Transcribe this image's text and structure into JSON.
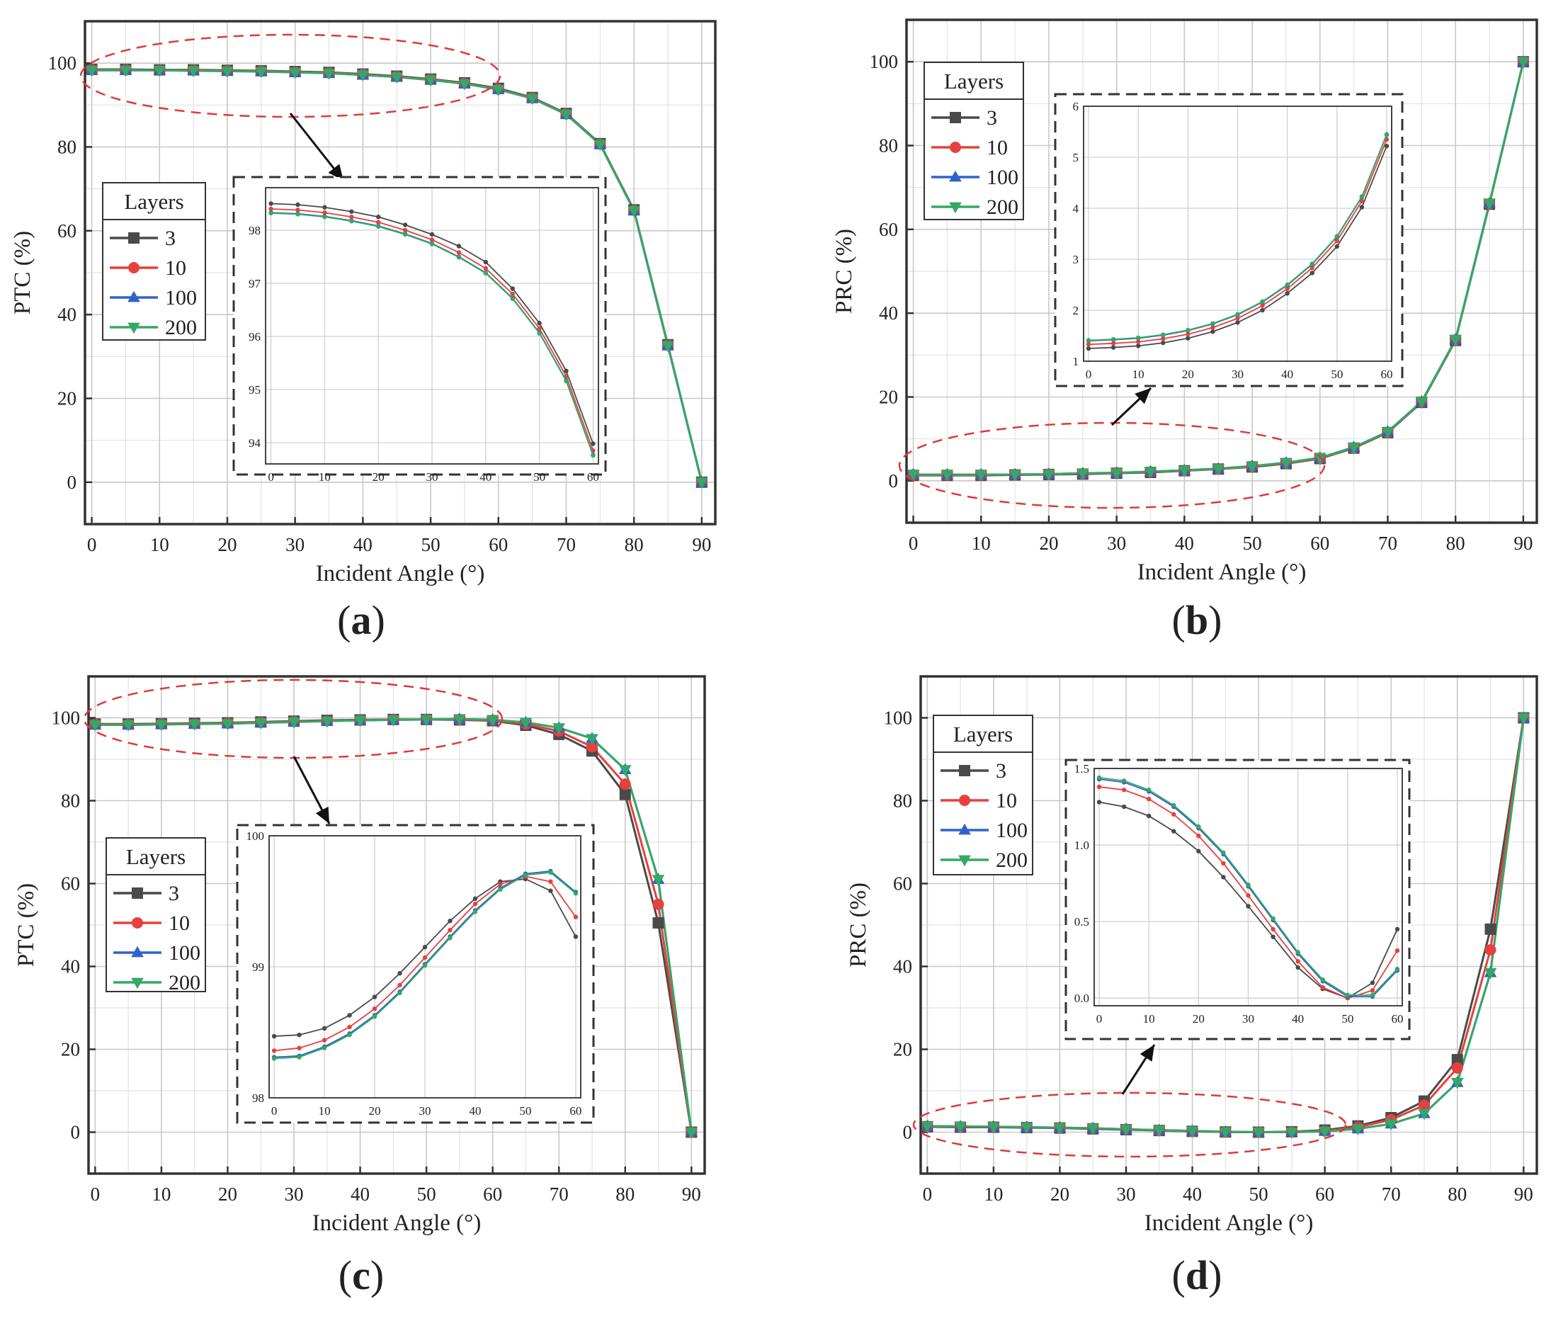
{
  "colors": {
    "s3": "#4a4a4a",
    "s10": "#e8403c",
    "s100": "#2f63c8",
    "s200": "#35a865",
    "ellipse": "#e0383c",
    "grid": "#c8c8c8",
    "minorGrid": "#e3e3e3",
    "frame": "#333333"
  },
  "chart_data": [
    {
      "panel_label": "(a)",
      "type": "line",
      "ylabel": "PTC (%)",
      "xlabel": "Incident Angle (°)",
      "xlim": [
        -1,
        92
      ],
      "ylim": [
        -10,
        110
      ],
      "xticks": [
        0,
        10,
        20,
        30,
        40,
        50,
        60,
        70,
        80,
        90
      ],
      "yticks": [
        0,
        20,
        40,
        60,
        80,
        100
      ],
      "x": [
        0,
        5,
        10,
        15,
        20,
        25,
        30,
        35,
        40,
        45,
        50,
        55,
        60,
        65,
        70,
        75,
        80,
        85,
        90
      ],
      "legend_title": "Layers",
      "legend_position": "middle-left",
      "series": [
        {
          "name": "3",
          "marker": "square",
          "values": [
            98.5,
            98.5,
            98.4,
            98.4,
            98.3,
            98.2,
            98.0,
            97.8,
            97.4,
            96.9,
            96.2,
            95.3,
            94.0,
            91.8,
            88.0,
            80.8,
            65.0,
            32.8,
            0
          ]
        },
        {
          "name": "10",
          "marker": "circle",
          "values": [
            98.4,
            98.4,
            98.3,
            98.3,
            98.2,
            98.1,
            97.9,
            97.7,
            97.3,
            96.8,
            96.1,
            95.2,
            93.8,
            91.7,
            87.9,
            80.7,
            64.9,
            32.7,
            0
          ]
        },
        {
          "name": "100",
          "marker": "triangle-up",
          "values": [
            98.3,
            98.3,
            98.3,
            98.2,
            98.1,
            98.0,
            97.8,
            97.6,
            97.2,
            96.7,
            96.0,
            95.1,
            93.7,
            91.6,
            87.8,
            80.6,
            64.8,
            32.6,
            0
          ]
        },
        {
          "name": "200",
          "marker": "triangle-down",
          "values": [
            98.3,
            98.3,
            98.3,
            98.2,
            98.1,
            98.0,
            97.8,
            97.6,
            97.2,
            96.7,
            96.0,
            95.1,
            93.7,
            91.6,
            87.8,
            80.6,
            64.8,
            32.6,
            0
          ]
        }
      ],
      "inset": {
        "xlim": [
          -1,
          61
        ],
        "ylim": [
          93.6,
          98.8
        ],
        "xticks": [
          0,
          10,
          20,
          30,
          40,
          50,
          60
        ],
        "yticks": [
          94,
          95,
          96,
          97,
          98
        ],
        "x": [
          0,
          5,
          10,
          15,
          20,
          25,
          30,
          35,
          40,
          45,
          50,
          55,
          60
        ],
        "series": [
          {
            "name": "3",
            "values": [
              98.5,
              98.48,
              98.43,
              98.35,
              98.25,
              98.1,
              97.92,
              97.7,
              97.4,
              96.9,
              96.25,
              95.35,
              93.98
            ]
          },
          {
            "name": "10",
            "values": [
              98.4,
              98.38,
              98.33,
              98.25,
              98.15,
              98.0,
              97.82,
              97.58,
              97.28,
              96.8,
              96.15,
              95.25,
              93.85
            ]
          },
          {
            "name": "100",
            "values": [
              98.33,
              98.31,
              98.26,
              98.18,
              98.08,
              97.93,
              97.75,
              97.5,
              97.2,
              96.72,
              96.07,
              95.17,
              93.77
            ]
          },
          {
            "name": "200",
            "values": [
              98.32,
              98.3,
              98.25,
              98.17,
              98.07,
              97.92,
              97.74,
              97.49,
              97.19,
              96.71,
              96.06,
              95.16,
              93.76
            ]
          }
        ]
      }
    },
    {
      "panel_label": "(b)",
      "type": "line",
      "ylabel": "PRC (%)",
      "xlabel": "Incident Angle (°)",
      "xlim": [
        -1,
        92
      ],
      "ylim": [
        -10,
        110
      ],
      "xticks": [
        0,
        10,
        20,
        30,
        40,
        50,
        60,
        70,
        80,
        90
      ],
      "yticks": [
        0,
        20,
        40,
        60,
        80,
        100
      ],
      "x": [
        0,
        5,
        10,
        15,
        20,
        25,
        30,
        35,
        40,
        45,
        50,
        55,
        60,
        65,
        70,
        75,
        80,
        85,
        90
      ],
      "legend_title": "Layers",
      "legend_position": "top-left",
      "series": [
        {
          "name": "3",
          "marker": "square",
          "values": [
            1.3,
            1.3,
            1.3,
            1.4,
            1.5,
            1.6,
            1.8,
            2.0,
            2.4,
            2.8,
            3.3,
            4.1,
            5.3,
            7.8,
            11.5,
            18.7,
            33.5,
            66.0,
            100
          ]
        },
        {
          "name": "10",
          "marker": "circle",
          "values": [
            1.4,
            1.4,
            1.4,
            1.5,
            1.6,
            1.7,
            1.9,
            2.1,
            2.4,
            2.8,
            3.4,
            4.2,
            5.4,
            7.9,
            11.6,
            18.8,
            33.6,
            66.1,
            100
          ]
        },
        {
          "name": "100",
          "marker": "triangle-up",
          "values": [
            1.5,
            1.5,
            1.5,
            1.5,
            1.6,
            1.8,
            1.9,
            2.2,
            2.5,
            2.9,
            3.5,
            4.3,
            5.5,
            8.0,
            11.7,
            18.9,
            33.7,
            66.2,
            100
          ]
        },
        {
          "name": "200",
          "marker": "triangle-down",
          "values": [
            1.5,
            1.5,
            1.5,
            1.5,
            1.6,
            1.8,
            1.9,
            2.2,
            2.5,
            2.9,
            3.5,
            4.3,
            5.5,
            8.0,
            11.7,
            18.9,
            33.7,
            66.2,
            100
          ]
        }
      ],
      "inset": {
        "xlim": [
          -1,
          61
        ],
        "ylim": [
          1.0,
          6.0
        ],
        "xticks": [
          0,
          10,
          20,
          30,
          40,
          50,
          60
        ],
        "yticks": [
          1,
          2,
          3,
          4,
          5,
          6
        ],
        "x": [
          0,
          5,
          10,
          15,
          20,
          25,
          30,
          35,
          40,
          45,
          50,
          55,
          60
        ],
        "series": [
          {
            "name": "3",
            "values": [
              1.25,
              1.27,
              1.3,
              1.36,
              1.45,
              1.58,
              1.76,
              2.0,
              2.33,
              2.73,
              3.25,
              4.02,
              5.22
            ]
          },
          {
            "name": "10",
            "values": [
              1.33,
              1.35,
              1.38,
              1.44,
              1.53,
              1.66,
              1.84,
              2.09,
              2.42,
              2.83,
              3.36,
              4.14,
              5.35
            ]
          },
          {
            "name": "100",
            "values": [
              1.4,
              1.42,
              1.45,
              1.51,
              1.6,
              1.73,
              1.91,
              2.16,
              2.49,
              2.9,
              3.44,
              4.22,
              5.44
            ]
          },
          {
            "name": "200",
            "values": [
              1.41,
              1.43,
              1.46,
              1.52,
              1.61,
              1.74,
              1.92,
              2.17,
              2.5,
              2.91,
              3.45,
              4.23,
              5.45
            ]
          }
        ]
      }
    },
    {
      "panel_label": "(c)",
      "type": "line",
      "ylabel": "PTC (%)",
      "xlabel": "Incident Angle (°)",
      "xlim": [
        -1,
        92
      ],
      "ylim": [
        -10,
        110
      ],
      "xticks": [
        0,
        10,
        20,
        30,
        40,
        50,
        60,
        70,
        80,
        90
      ],
      "yticks": [
        0,
        20,
        40,
        60,
        80,
        100
      ],
      "x": [
        0,
        5,
        10,
        15,
        20,
        25,
        30,
        35,
        40,
        45,
        50,
        55,
        60,
        65,
        70,
        75,
        80,
        85,
        90
      ],
      "legend_title": "Layers",
      "legend_position": "middle-left",
      "series": [
        {
          "name": "3",
          "marker": "square",
          "values": [
            98.5,
            98.5,
            98.6,
            98.7,
            98.8,
            99.0,
            99.2,
            99.4,
            99.5,
            99.6,
            99.6,
            99.5,
            99.3,
            98.2,
            96.0,
            92.0,
            81.5,
            50.5,
            0
          ]
        },
        {
          "name": "10",
          "marker": "circle",
          "values": [
            98.4,
            98.4,
            98.5,
            98.6,
            98.7,
            98.9,
            99.1,
            99.3,
            99.4,
            99.6,
            99.6,
            99.6,
            99.4,
            98.5,
            96.8,
            93.0,
            84.0,
            55.0,
            0
          ]
        },
        {
          "name": "100",
          "marker": "triangle-up",
          "values": [
            98.3,
            98.3,
            98.4,
            98.5,
            98.6,
            98.8,
            99.0,
            99.2,
            99.4,
            99.5,
            99.6,
            99.7,
            99.5,
            98.9,
            97.6,
            95.0,
            87.5,
            61.0,
            0
          ]
        },
        {
          "name": "200",
          "marker": "triangle-down",
          "values": [
            98.3,
            98.3,
            98.4,
            98.5,
            98.6,
            98.8,
            99.0,
            99.2,
            99.4,
            99.5,
            99.6,
            99.7,
            99.5,
            98.9,
            97.6,
            95.0,
            87.5,
            61.0,
            0
          ]
        }
      ],
      "inset": {
        "xlim": [
          -1,
          61
        ],
        "ylim": [
          98.0,
          100.0
        ],
        "xticks": [
          0,
          10,
          20,
          30,
          40,
          50,
          60
        ],
        "yticks": [
          98,
          99,
          100
        ],
        "ytick_labels": [
          "98",
          "99",
          "100"
        ],
        "x": [
          0,
          5,
          10,
          15,
          20,
          25,
          30,
          35,
          40,
          45,
          50,
          55,
          60
        ],
        "series": [
          {
            "name": "3",
            "values": [
              98.47,
              98.48,
              98.53,
              98.63,
              98.77,
              98.95,
              99.15,
              99.35,
              99.52,
              99.65,
              99.67,
              99.58,
              99.23
            ]
          },
          {
            "name": "10",
            "values": [
              98.36,
              98.38,
              98.44,
              98.54,
              98.68,
              98.86,
              99.07,
              99.28,
              99.48,
              99.63,
              99.69,
              99.65,
              99.38
            ]
          },
          {
            "name": "100",
            "values": [
              98.31,
              98.32,
              98.39,
              98.49,
              98.63,
              98.81,
              99.02,
              99.23,
              99.43,
              99.6,
              99.71,
              99.73,
              99.57
            ]
          },
          {
            "name": "200",
            "values": [
              98.3,
              98.31,
              98.38,
              98.48,
              98.62,
              98.8,
              99.01,
              99.22,
              99.42,
              99.59,
              99.7,
              99.72,
              99.56
            ]
          }
        ]
      }
    },
    {
      "panel_label": "(d)",
      "type": "line",
      "ylabel": "PRC (%)",
      "xlabel": "Incident Angle (°)",
      "xlim": [
        -1,
        92
      ],
      "ylim": [
        -10,
        110
      ],
      "xticks": [
        0,
        10,
        20,
        30,
        40,
        50,
        60,
        70,
        80,
        90
      ],
      "yticks": [
        0,
        20,
        40,
        60,
        80,
        100
      ],
      "x": [
        0,
        5,
        10,
        15,
        20,
        25,
        30,
        35,
        40,
        45,
        50,
        55,
        60,
        65,
        70,
        75,
        80,
        85,
        90
      ],
      "legend_title": "Layers",
      "legend_position": "top-left",
      "series": [
        {
          "name": "3",
          "marker": "square",
          "values": [
            1.3,
            1.2,
            1.2,
            1.1,
            1.0,
            0.8,
            0.6,
            0.4,
            0.2,
            0.05,
            0.0,
            0.1,
            0.5,
            1.5,
            3.5,
            7.5,
            17.5,
            49.0,
            100
          ]
        },
        {
          "name": "10",
          "marker": "circle",
          "values": [
            1.4,
            1.3,
            1.3,
            1.2,
            1.1,
            0.9,
            0.7,
            0.4,
            0.2,
            0.05,
            0.0,
            0.05,
            0.3,
            1.2,
            3.0,
            6.5,
            15.5,
            44.0,
            100
          ]
        },
        {
          "name": "100",
          "marker": "triangle-up",
          "values": [
            1.45,
            1.4,
            1.3,
            1.2,
            1.1,
            0.95,
            0.7,
            0.5,
            0.3,
            0.1,
            0.0,
            0.0,
            0.2,
            0.8,
            2.0,
            4.5,
            12.0,
            38.5,
            100
          ]
        },
        {
          "name": "200",
          "marker": "triangle-down",
          "values": [
            1.45,
            1.4,
            1.3,
            1.2,
            1.1,
            0.95,
            0.7,
            0.5,
            0.3,
            0.1,
            0.0,
            0.0,
            0.2,
            0.8,
            2.0,
            4.5,
            12.0,
            38.5,
            100
          ]
        }
      ],
      "inset": {
        "xlim": [
          -1,
          61
        ],
        "ylim": [
          -0.05,
          1.5
        ],
        "xticks": [
          0,
          10,
          20,
          30,
          40,
          50,
          60
        ],
        "yticks": [
          0.0,
          0.5,
          1.0,
          1.5
        ],
        "ytick_labels": [
          "0.0",
          "0.5",
          "1.0",
          "1.5"
        ],
        "x": [
          0,
          5,
          10,
          15,
          20,
          25,
          30,
          35,
          40,
          45,
          50,
          55,
          60
        ],
        "series": [
          {
            "name": "3",
            "values": [
              1.28,
              1.25,
              1.19,
              1.09,
              0.96,
              0.79,
              0.6,
              0.4,
              0.2,
              0.06,
              0.0,
              0.1,
              0.45
            ]
          },
          {
            "name": "10",
            "values": [
              1.38,
              1.36,
              1.3,
              1.2,
              1.06,
              0.88,
              0.67,
              0.45,
              0.24,
              0.07,
              0.0,
              0.05,
              0.31
            ]
          },
          {
            "name": "100",
            "values": [
              1.43,
              1.41,
              1.35,
              1.25,
              1.11,
              0.94,
              0.73,
              0.51,
              0.29,
              0.11,
              0.01,
              0.01,
              0.18
            ]
          },
          {
            "name": "200",
            "values": [
              1.44,
              1.42,
              1.36,
              1.26,
              1.12,
              0.95,
              0.74,
              0.52,
              0.3,
              0.12,
              0.02,
              0.02,
              0.19
            ]
          }
        ]
      }
    }
  ]
}
